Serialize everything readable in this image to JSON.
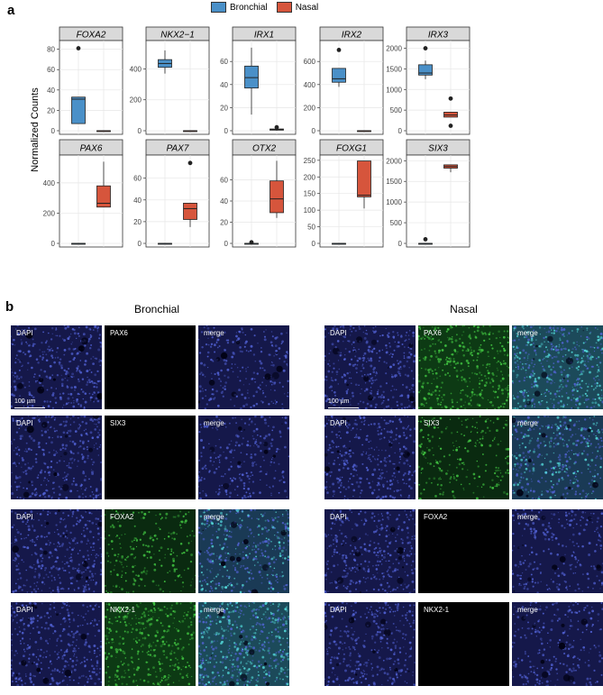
{
  "panel_a": {
    "label": "a",
    "legend": [
      {
        "name": "Bronchial",
        "color": "#4A90C8"
      },
      {
        "name": "Nasal",
        "color": "#D6553C"
      }
    ],
    "ylabel": "Normalized Counts"
  },
  "chart_data": [
    {
      "type": "box",
      "title": "FOXA2",
      "ylim": [
        0,
        85
      ],
      "yticks": [
        "0",
        "20",
        "40",
        "60",
        "80"
      ],
      "ytick_vals": [
        0,
        20,
        40,
        60,
        80
      ],
      "series": [
        {
          "name": "Bronchial",
          "q1": 7,
          "median": 31,
          "q3": 33,
          "whisker_low": 7,
          "whisker_high": 33,
          "outliers": [
            81
          ]
        },
        {
          "name": "Nasal",
          "q1": 0,
          "median": 0,
          "q3": 0,
          "whisker_low": 0,
          "whisker_high": 0,
          "outliers": []
        }
      ]
    },
    {
      "type": "box",
      "title": "NKX2−1",
      "ylim": [
        0,
        560
      ],
      "yticks": [
        "0",
        "200",
        "400"
      ],
      "ytick_vals": [
        0,
        200,
        400
      ],
      "series": [
        {
          "name": "Bronchial",
          "q1": 410,
          "median": 435,
          "q3": 460,
          "whisker_low": 370,
          "whisker_high": 520,
          "outliers": []
        },
        {
          "name": "Nasal",
          "q1": 0,
          "median": 0,
          "q3": 0,
          "whisker_low": 0,
          "whisker_high": 0,
          "outliers": []
        }
      ]
    },
    {
      "type": "box",
      "title": "IRX1",
      "ylim": [
        0,
        75
      ],
      "yticks": [
        "0",
        "20",
        "40",
        "60"
      ],
      "ytick_vals": [
        0,
        20,
        40,
        60
      ],
      "series": [
        {
          "name": "Bronchial",
          "q1": 37,
          "median": 46,
          "q3": 56,
          "whisker_low": 14,
          "whisker_high": 72,
          "outliers": []
        },
        {
          "name": "Nasal",
          "q1": 0.5,
          "median": 1,
          "q3": 1.5,
          "whisker_low": 0,
          "whisker_high": 1.5,
          "outliers": [
            3
          ]
        }
      ]
    },
    {
      "type": "box",
      "title": "IRX2",
      "ylim": [
        0,
        750
      ],
      "yticks": [
        "0",
        "200",
        "400",
        "600"
      ],
      "ytick_vals": [
        0,
        200,
        400,
        600
      ],
      "series": [
        {
          "name": "Bronchial",
          "q1": 420,
          "median": 450,
          "q3": 540,
          "whisker_low": 380,
          "whisker_high": 540,
          "outliers": [
            700
          ]
        },
        {
          "name": "Nasal",
          "q1": 0,
          "median": 0,
          "q3": 0,
          "whisker_low": 0,
          "whisker_high": 0,
          "outliers": []
        }
      ]
    },
    {
      "type": "box",
      "title": "IRX3",
      "ylim": [
        0,
        2100
      ],
      "yticks": [
        "0",
        "500",
        "1000",
        "1500",
        "2000"
      ],
      "ytick_vals": [
        0,
        500,
        1000,
        1500,
        2000
      ],
      "series": [
        {
          "name": "Bronchial",
          "q1": 1350,
          "median": 1400,
          "q3": 1600,
          "whisker_low": 1250,
          "whisker_high": 1700,
          "outliers": [
            2000
          ]
        },
        {
          "name": "Nasal",
          "q1": 330,
          "median": 380,
          "q3": 450,
          "whisker_low": 330,
          "whisker_high": 450,
          "outliers": [
            780,
            120
          ]
        }
      ]
    },
    {
      "type": "box",
      "title": "PAX6",
      "ylim": [
        0,
        560
      ],
      "yticks": [
        "0",
        "200",
        "400"
      ],
      "ytick_vals": [
        0,
        200,
        400
      ],
      "series": [
        {
          "name": "Bronchial",
          "q1": 0,
          "median": 0,
          "q3": 0,
          "whisker_low": 0,
          "whisker_high": 0,
          "outliers": []
        },
        {
          "name": "Nasal",
          "q1": 240,
          "median": 265,
          "q3": 380,
          "whisker_low": 240,
          "whisker_high": 540,
          "outliers": []
        }
      ]
    },
    {
      "type": "box",
      "title": "PAX7",
      "ylim": [
        0,
        78
      ],
      "yticks": [
        "0",
        "20",
        "40",
        "60"
      ],
      "ytick_vals": [
        0,
        20,
        40,
        60
      ],
      "series": [
        {
          "name": "Bronchial",
          "q1": 0,
          "median": 0,
          "q3": 0,
          "whisker_low": 0,
          "whisker_high": 0,
          "outliers": []
        },
        {
          "name": "Nasal",
          "q1": 22,
          "median": 32,
          "q3": 37,
          "whisker_low": 15,
          "whisker_high": 37,
          "outliers": [
            74
          ]
        }
      ]
    },
    {
      "type": "box",
      "title": "OTX2",
      "ylim": [
        0,
        80
      ],
      "yticks": [
        "0",
        "20",
        "40",
        "60"
      ],
      "ytick_vals": [
        0,
        20,
        40,
        60
      ],
      "series": [
        {
          "name": "Bronchial",
          "q1": 0,
          "median": 0,
          "q3": 0,
          "whisker_low": 0,
          "whisker_high": 0,
          "outliers": [
            1
          ]
        },
        {
          "name": "Nasal",
          "q1": 29,
          "median": 42,
          "q3": 59,
          "whisker_low": 24,
          "whisker_high": 78,
          "outliers": []
        }
      ]
    },
    {
      "type": "box",
      "title": "FOXG1",
      "ylim": [
        0,
        255
      ],
      "yticks": [
        "0",
        "50",
        "100",
        "150",
        "200",
        "250"
      ],
      "ytick_vals": [
        0,
        50,
        100,
        150,
        200,
        250
      ],
      "series": [
        {
          "name": "Bronchial",
          "q1": 0,
          "median": 0,
          "q3": 0,
          "whisker_low": 0,
          "whisker_high": 0,
          "outliers": []
        },
        {
          "name": "Nasal",
          "q1": 140,
          "median": 145,
          "q3": 248,
          "whisker_low": 105,
          "whisker_high": 248,
          "outliers": []
        }
      ]
    },
    {
      "type": "box",
      "title": "SIX3",
      "ylim": [
        0,
        2050
      ],
      "yticks": [
        "0",
        "500",
        "1000",
        "1500",
        "2000"
      ],
      "ytick_vals": [
        0,
        500,
        1000,
        1500,
        2000
      ],
      "series": [
        {
          "name": "Bronchial",
          "q1": 0,
          "median": 0,
          "q3": 0,
          "whisker_low": 0,
          "whisker_high": 0,
          "outliers": [
            100
          ]
        },
        {
          "name": "Nasal",
          "q1": 1820,
          "median": 1860,
          "q3": 1900,
          "whisker_low": 1720,
          "whisker_high": 1900,
          "outliers": []
        }
      ]
    }
  ],
  "panel_b": {
    "label": "b",
    "scale_bar": "100 µm",
    "groups": [
      {
        "title": "Bronchial",
        "rows": [
          {
            "dapi": "DAPI",
            "marker": "PAX6",
            "merge": "merge",
            "marker_level": "none"
          },
          {
            "dapi": "DAPI",
            "marker": "SIX3",
            "merge": "merge",
            "marker_level": "none"
          },
          {
            "dapi": "DAPI",
            "marker": "FOXA2",
            "merge": "merge",
            "marker_level": "medium"
          },
          {
            "dapi": "DAPI",
            "marker": "NKX2-1",
            "merge": "merge",
            "marker_level": "high"
          }
        ]
      },
      {
        "title": "Nasal",
        "rows": [
          {
            "dapi": "DAPI",
            "marker": "PAX6",
            "merge": "merge",
            "marker_level": "high"
          },
          {
            "dapi": "DAPI",
            "marker": "SIX3",
            "merge": "merge",
            "marker_level": "medium"
          },
          {
            "dapi": "DAPI",
            "marker": "FOXA2",
            "merge": "merge",
            "marker_level": "none"
          },
          {
            "dapi": "DAPI",
            "marker": "NKX2-1",
            "merge": "merge",
            "marker_level": "none"
          }
        ]
      }
    ]
  }
}
